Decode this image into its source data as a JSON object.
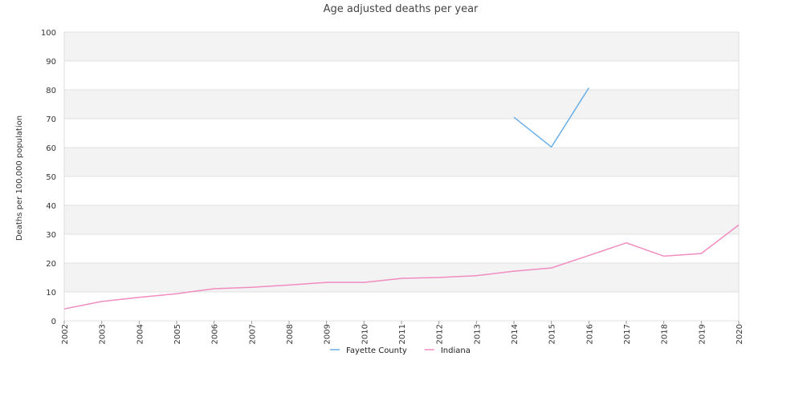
{
  "chart_data": {
    "type": "line",
    "title": "Age adjusted deaths per year",
    "xlabel": "",
    "ylabel": "Deaths per 100,000 population",
    "ylim": [
      0,
      100
    ],
    "yticks": [
      0,
      10,
      20,
      30,
      40,
      50,
      60,
      70,
      80,
      90,
      100
    ],
    "categories": [
      "2002",
      "2003",
      "2004",
      "2005",
      "2006",
      "2007",
      "2008",
      "2009",
      "2010",
      "2011",
      "2012",
      "2013",
      "2014",
      "2015",
      "2016",
      "2017",
      "2018",
      "2019",
      "2020"
    ],
    "grid": "horizontal alternating bands",
    "legend_position": "bottom",
    "series": [
      {
        "name": "Fayette County",
        "color": "#6aaee8",
        "values": [
          null,
          null,
          null,
          null,
          null,
          null,
          null,
          null,
          null,
          null,
          null,
          null,
          70.5,
          60.2,
          80.7,
          null,
          null,
          null,
          null
        ]
      },
      {
        "name": "Indiana",
        "color": "#f08cc0",
        "values": [
          4.1,
          6.7,
          8.1,
          9.4,
          11.1,
          11.6,
          12.4,
          13.3,
          13.3,
          14.7,
          15.0,
          15.6,
          17.2,
          18.3,
          22.6,
          27.0,
          22.4,
          23.3,
          33.2
        ]
      }
    ]
  }
}
